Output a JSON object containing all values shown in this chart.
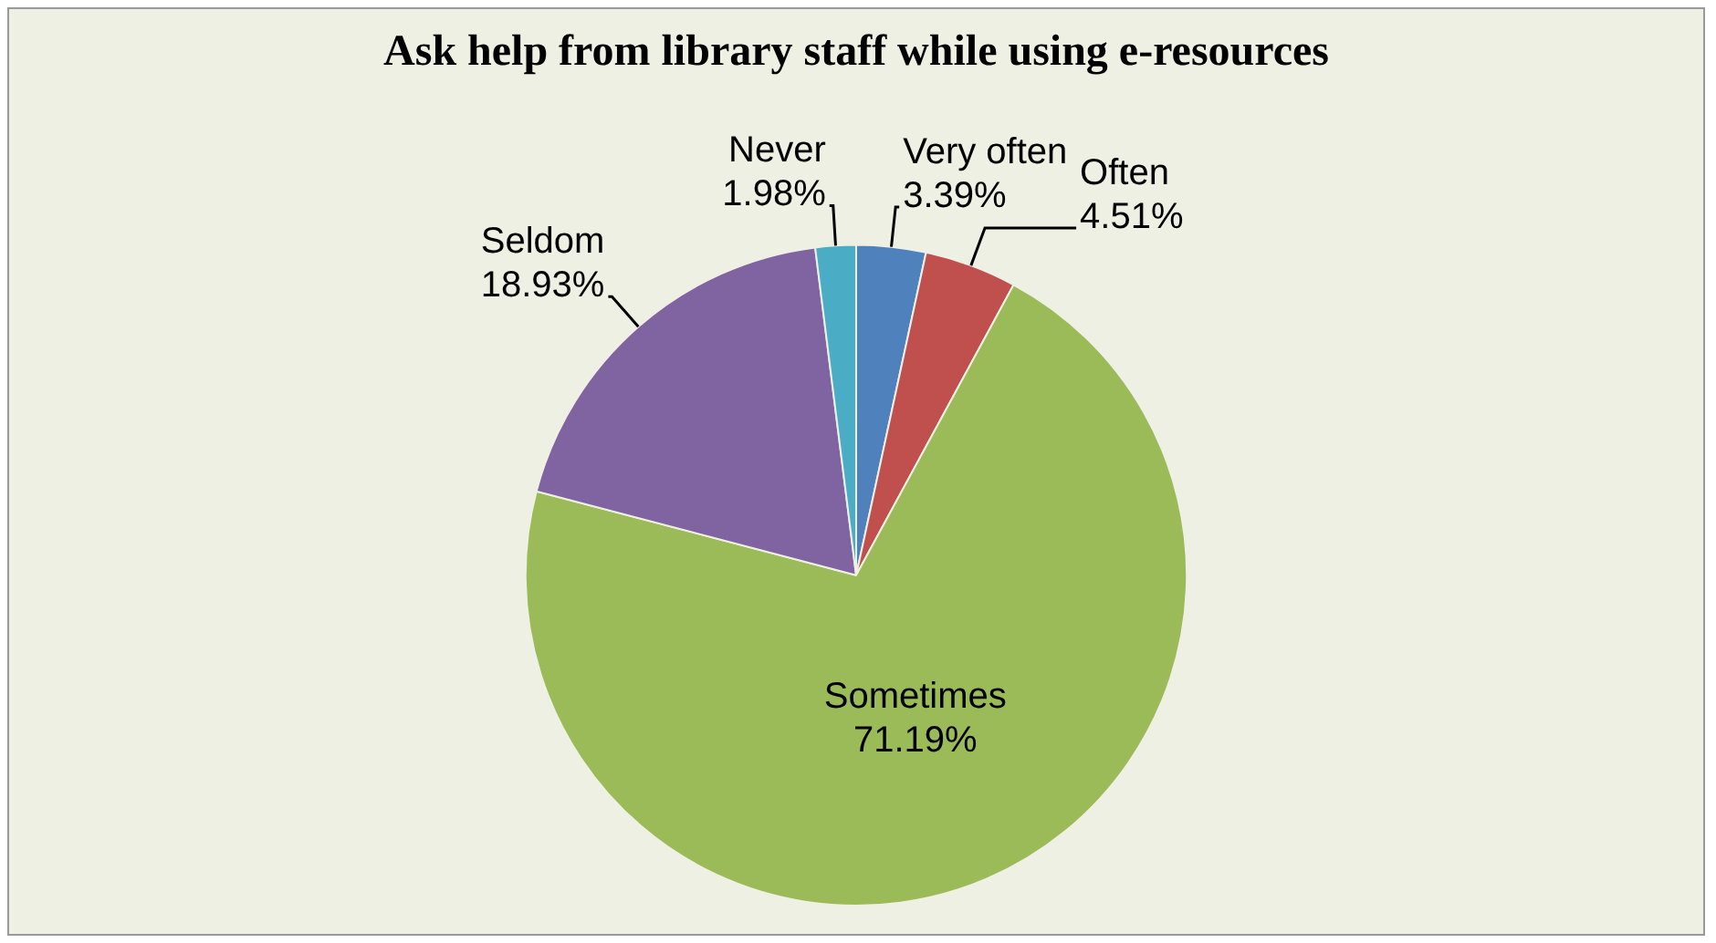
{
  "chart_data": {
    "type": "pie",
    "title": "Ask help from library staff while using e-resources",
    "categories": [
      "Very often",
      "Often",
      "Sometimes",
      "Seldom",
      "Never"
    ],
    "values": [
      3.39,
      4.51,
      71.19,
      18.93,
      1.98
    ],
    "colors": [
      "#4f81bd",
      "#c0504d",
      "#9bbb59",
      "#8064a2",
      "#4bacc6"
    ],
    "value_labels": [
      "3.39%",
      "4.51%",
      "71.19%",
      "18.93%",
      "1.98%"
    ],
    "legend": false
  }
}
